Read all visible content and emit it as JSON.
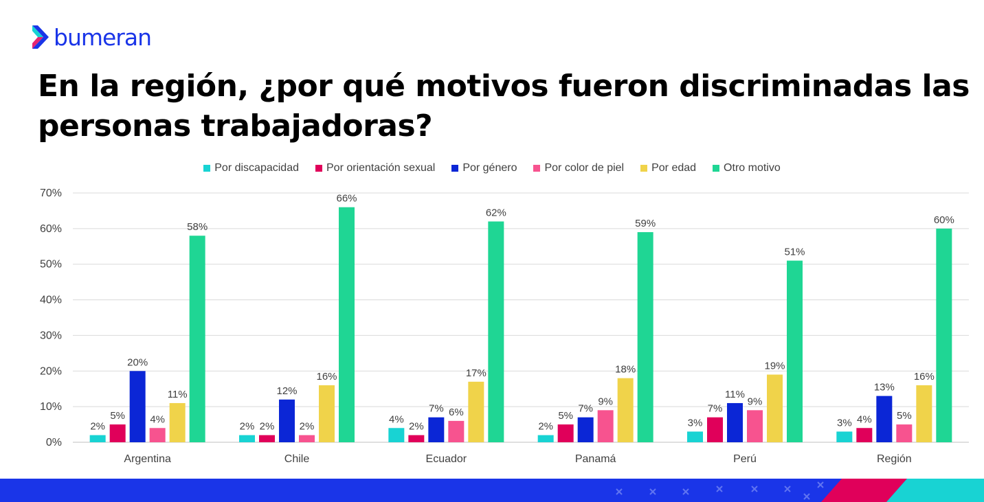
{
  "brand": {
    "name": "bumeran",
    "logo_icon": "chevron-logo-icon"
  },
  "title": "En la región, ¿por qué motivos fueron discriminadas las personas trabajadoras?",
  "colors": {
    "brand_blue": "#1a35e8",
    "gridline": "#d9d9d9",
    "text": "#404040"
  },
  "chart_data": {
    "type": "bar",
    "categories": [
      "Argentina",
      "Chile",
      "Ecuador",
      "Panamá",
      "Perú",
      "Región"
    ],
    "series": [
      {
        "name": "Por discapacidad",
        "color": "#18d3d3",
        "values": [
          2,
          2,
          4,
          2,
          3,
          3
        ]
      },
      {
        "name": "Por orientación sexual",
        "color": "#e0005a",
        "values": [
          5,
          2,
          2,
          5,
          7,
          4
        ]
      },
      {
        "name": "Por género",
        "color": "#0b26d6",
        "values": [
          20,
          12,
          7,
          7,
          11,
          13
        ]
      },
      {
        "name": "Por color de piel",
        "color": "#f7538f",
        "values": [
          4,
          2,
          6,
          9,
          9,
          5
        ]
      },
      {
        "name": "Por edad",
        "color": "#f0d34a",
        "values": [
          11,
          16,
          17,
          18,
          19,
          16
        ]
      },
      {
        "name": "Otro motivo",
        "color": "#1fd694",
        "values": [
          58,
          66,
          62,
          59,
          51,
          60
        ]
      }
    ],
    "ylim": [
      0,
      70
    ],
    "yticks": [
      "0%",
      "10%",
      "20%",
      "30%",
      "40%",
      "50%",
      "60%",
      "70%"
    ],
    "value_suffix": "%",
    "grid": true,
    "legend": "top"
  }
}
